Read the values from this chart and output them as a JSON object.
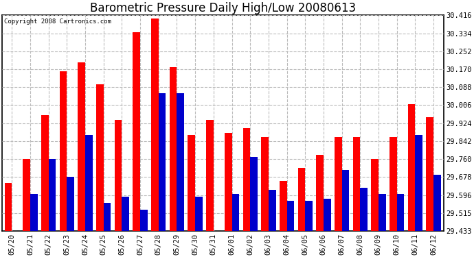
{
  "title": "Barometric Pressure Daily High/Low 20080613",
  "copyright": "Copyright 2008 Cartronics.com",
  "dates": [
    "05/20",
    "05/21",
    "05/22",
    "05/23",
    "05/24",
    "05/25",
    "05/26",
    "05/27",
    "05/28",
    "05/29",
    "05/30",
    "05/31",
    "06/01",
    "06/02",
    "06/03",
    "06/04",
    "06/05",
    "06/06",
    "06/07",
    "06/08",
    "06/09",
    "06/10",
    "06/11",
    "06/12"
  ],
  "highs": [
    29.65,
    29.76,
    29.96,
    30.16,
    30.2,
    30.1,
    29.94,
    30.34,
    30.4,
    30.18,
    29.87,
    29.94,
    29.88,
    29.9,
    29.86,
    29.66,
    29.72,
    29.78,
    29.86,
    29.86,
    29.76,
    29.86,
    30.01,
    29.95
  ],
  "lows": [
    29.433,
    29.6,
    29.76,
    29.68,
    29.87,
    29.56,
    29.59,
    29.53,
    30.06,
    30.06,
    29.59,
    29.433,
    29.6,
    29.77,
    29.62,
    29.57,
    29.57,
    29.58,
    29.71,
    29.63,
    29.6,
    29.6,
    29.87,
    29.69
  ],
  "ymin": 29.433,
  "ymax": 30.416,
  "yticks": [
    29.433,
    29.515,
    29.596,
    29.678,
    29.76,
    29.842,
    29.924,
    30.006,
    30.088,
    30.17,
    30.252,
    30.334,
    30.416
  ],
  "high_color": "#ff0000",
  "low_color": "#0000cc",
  "bg_color": "#ffffff",
  "grid_color": "#bbbbbb",
  "bar_width": 0.4,
  "title_fontsize": 12,
  "tick_fontsize": 7.5
}
